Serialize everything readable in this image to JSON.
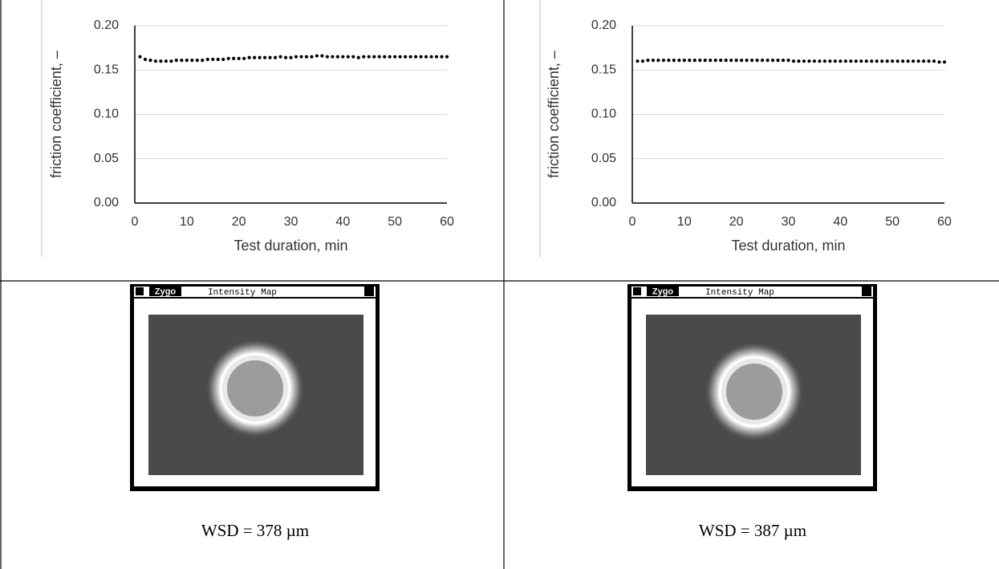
{
  "chart_data": [
    {
      "type": "scatter",
      "xlabel": "Test duration, min",
      "ylabel": "friction coefficient, –",
      "color": "#000000",
      "grid": true,
      "xlim": [
        0,
        60
      ],
      "xticks": [
        0,
        10,
        20,
        30,
        40,
        50,
        60
      ],
      "ylim": [
        0,
        0.2
      ],
      "yticks": [
        {
          "value": 0,
          "label": "0.00"
        },
        0.05,
        {
          "value": 0.1,
          "label": "0.10"
        },
        0.15,
        {
          "value": 0.2,
          "label": "0.20"
        }
      ],
      "x": [
        1,
        2,
        3,
        4,
        5,
        6,
        7,
        8,
        9,
        10,
        11,
        12,
        13,
        14,
        15,
        16,
        17,
        18,
        19,
        20,
        21,
        22,
        23,
        24,
        25,
        26,
        27,
        28,
        29,
        30,
        31,
        32,
        33,
        34,
        35,
        36,
        37,
        38,
        39,
        40,
        41,
        42,
        43,
        44,
        45,
        46,
        47,
        48,
        49,
        50,
        51,
        52,
        53,
        54,
        55,
        56,
        57,
        58,
        59,
        60
      ],
      "values": [
        0.165,
        0.162,
        0.161,
        0.16,
        0.16,
        0.16,
        0.16,
        0.161,
        0.161,
        0.161,
        0.161,
        0.161,
        0.161,
        0.162,
        0.162,
        0.162,
        0.162,
        0.163,
        0.163,
        0.163,
        0.163,
        0.164,
        0.164,
        0.164,
        0.164,
        0.164,
        0.164,
        0.165,
        0.164,
        0.164,
        0.165,
        0.165,
        0.165,
        0.165,
        0.166,
        0.166,
        0.165,
        0.165,
        0.165,
        0.165,
        0.165,
        0.165,
        0.164,
        0.165,
        0.165,
        0.165,
        0.165,
        0.165,
        0.165,
        0.165,
        0.165,
        0.165,
        0.165,
        0.165,
        0.165,
        0.165,
        0.165,
        0.165,
        0.165,
        0.165
      ]
    },
    {
      "type": "scatter",
      "xlabel": "Test duration, min",
      "ylabel": "friction coefficient, –",
      "color": "#000000",
      "grid": true,
      "xlim": [
        0,
        60
      ],
      "xticks": [
        0,
        10,
        20,
        30,
        40,
        50,
        60
      ],
      "ylim": [
        0,
        0.2
      ],
      "yticks": [
        {
          "value": 0,
          "label": "0.00"
        },
        0.05,
        {
          "value": 0.1,
          "label": "0.10"
        },
        0.15,
        {
          "value": 0.2,
          "label": "0.20"
        }
      ],
      "x": [
        1,
        2,
        3,
        4,
        5,
        6,
        7,
        8,
        9,
        10,
        11,
        12,
        13,
        14,
        15,
        16,
        17,
        18,
        19,
        20,
        21,
        22,
        23,
        24,
        25,
        26,
        27,
        28,
        29,
        30,
        31,
        32,
        33,
        34,
        35,
        36,
        37,
        38,
        39,
        40,
        41,
        42,
        43,
        44,
        45,
        46,
        47,
        48,
        49,
        50,
        51,
        52,
        53,
        54,
        55,
        56,
        57,
        58,
        59,
        60
      ],
      "values": [
        0.16,
        0.16,
        0.161,
        0.161,
        0.161,
        0.161,
        0.161,
        0.161,
        0.161,
        0.161,
        0.161,
        0.161,
        0.161,
        0.161,
        0.161,
        0.161,
        0.161,
        0.161,
        0.161,
        0.161,
        0.161,
        0.161,
        0.161,
        0.161,
        0.161,
        0.161,
        0.161,
        0.161,
        0.161,
        0.161,
        0.16,
        0.16,
        0.16,
        0.16,
        0.16,
        0.16,
        0.16,
        0.16,
        0.16,
        0.16,
        0.16,
        0.16,
        0.16,
        0.16,
        0.16,
        0.16,
        0.16,
        0.16,
        0.16,
        0.16,
        0.16,
        0.16,
        0.16,
        0.16,
        0.16,
        0.16,
        0.16,
        0.16,
        0.159,
        0.159
      ]
    }
  ],
  "windows": [
    {
      "logo": "Zygo",
      "title": "Intensity Map"
    },
    {
      "logo": "Zygo",
      "title": "Intensity Map"
    }
  ],
  "captions": [
    "WSD = 378 µm",
    "WSD = 387 µm"
  ]
}
